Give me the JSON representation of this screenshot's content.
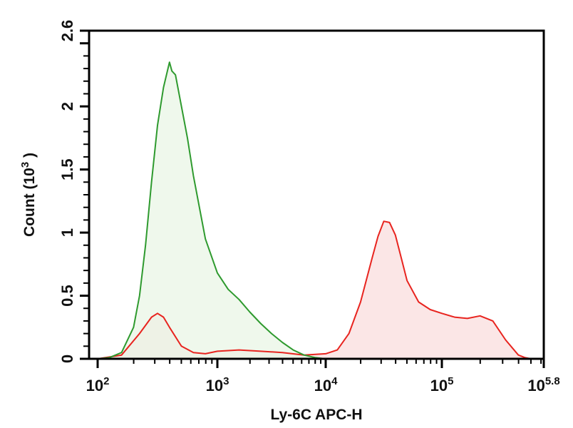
{
  "chart_data": {
    "type": "area",
    "title": "",
    "xlabel": "Ly-6C APC-H",
    "ylabel": "Count (10^3)",
    "xscale": "log",
    "xlim_log10": [
      2,
      5.8
    ],
    "ylim": [
      0,
      2.6
    ],
    "grid": false,
    "legend": null,
    "x_ticks": [
      {
        "label_base": "10",
        "label_exp": "2",
        "log10": 2
      },
      {
        "label_base": "10",
        "label_exp": "3",
        "log10": 3
      },
      {
        "label_base": "10",
        "label_exp": "4",
        "log10": 4
      },
      {
        "label_base": "10",
        "label_exp": "5",
        "log10": 5
      },
      {
        "label_base": "10",
        "label_exp": "5.8",
        "log10": 5.8
      }
    ],
    "y_ticks": [
      {
        "label": "0",
        "value": 0
      },
      {
        "label": "0.5",
        "value": 0.5
      },
      {
        "label": "1",
        "value": 1
      },
      {
        "label": "1.5",
        "value": 1.5
      },
      {
        "label": "2",
        "value": 2
      },
      {
        "label": "2.6",
        "value": 2.6
      }
    ],
    "series": [
      {
        "name": "Green histogram (negative / control population)",
        "color": "#2e9a2e",
        "fill": "#e9f5e6",
        "log10_x": [
          2.0,
          2.1,
          2.2,
          2.3,
          2.35,
          2.4,
          2.45,
          2.5,
          2.55,
          2.6,
          2.62,
          2.65,
          2.7,
          2.75,
          2.8,
          2.9,
          3.0,
          3.1,
          3.2,
          3.3,
          3.4,
          3.5,
          3.6,
          3.7,
          3.8,
          3.9,
          4.0
        ],
        "values": [
          0.0,
          0.01,
          0.05,
          0.25,
          0.5,
          0.9,
          1.4,
          1.85,
          2.15,
          2.35,
          2.28,
          2.25,
          2.0,
          1.75,
          1.45,
          0.95,
          0.68,
          0.55,
          0.47,
          0.37,
          0.28,
          0.2,
          0.13,
          0.07,
          0.03,
          0.01,
          0.0
        ]
      },
      {
        "name": "Red histogram (Ly-6C stained population)",
        "color": "#e8241f",
        "fill": "#fbe3e3",
        "log10_x": [
          2.0,
          2.2,
          2.35,
          2.45,
          2.5,
          2.55,
          2.6,
          2.7,
          2.8,
          2.9,
          3.0,
          3.2,
          3.4,
          3.6,
          3.8,
          4.0,
          4.1,
          4.2,
          4.3,
          4.4,
          4.45,
          4.5,
          4.55,
          4.6,
          4.65,
          4.7,
          4.8,
          4.9,
          5.0,
          5.1,
          5.2,
          5.3,
          5.4,
          5.5,
          5.6,
          5.65,
          5.7
        ],
        "values": [
          0.0,
          0.03,
          0.2,
          0.33,
          0.36,
          0.33,
          0.25,
          0.1,
          0.05,
          0.04,
          0.06,
          0.07,
          0.06,
          0.05,
          0.03,
          0.04,
          0.07,
          0.2,
          0.45,
          0.8,
          0.97,
          1.09,
          1.08,
          0.98,
          0.8,
          0.62,
          0.45,
          0.39,
          0.36,
          0.33,
          0.32,
          0.34,
          0.3,
          0.15,
          0.03,
          0.01,
          0.0
        ]
      }
    ]
  }
}
